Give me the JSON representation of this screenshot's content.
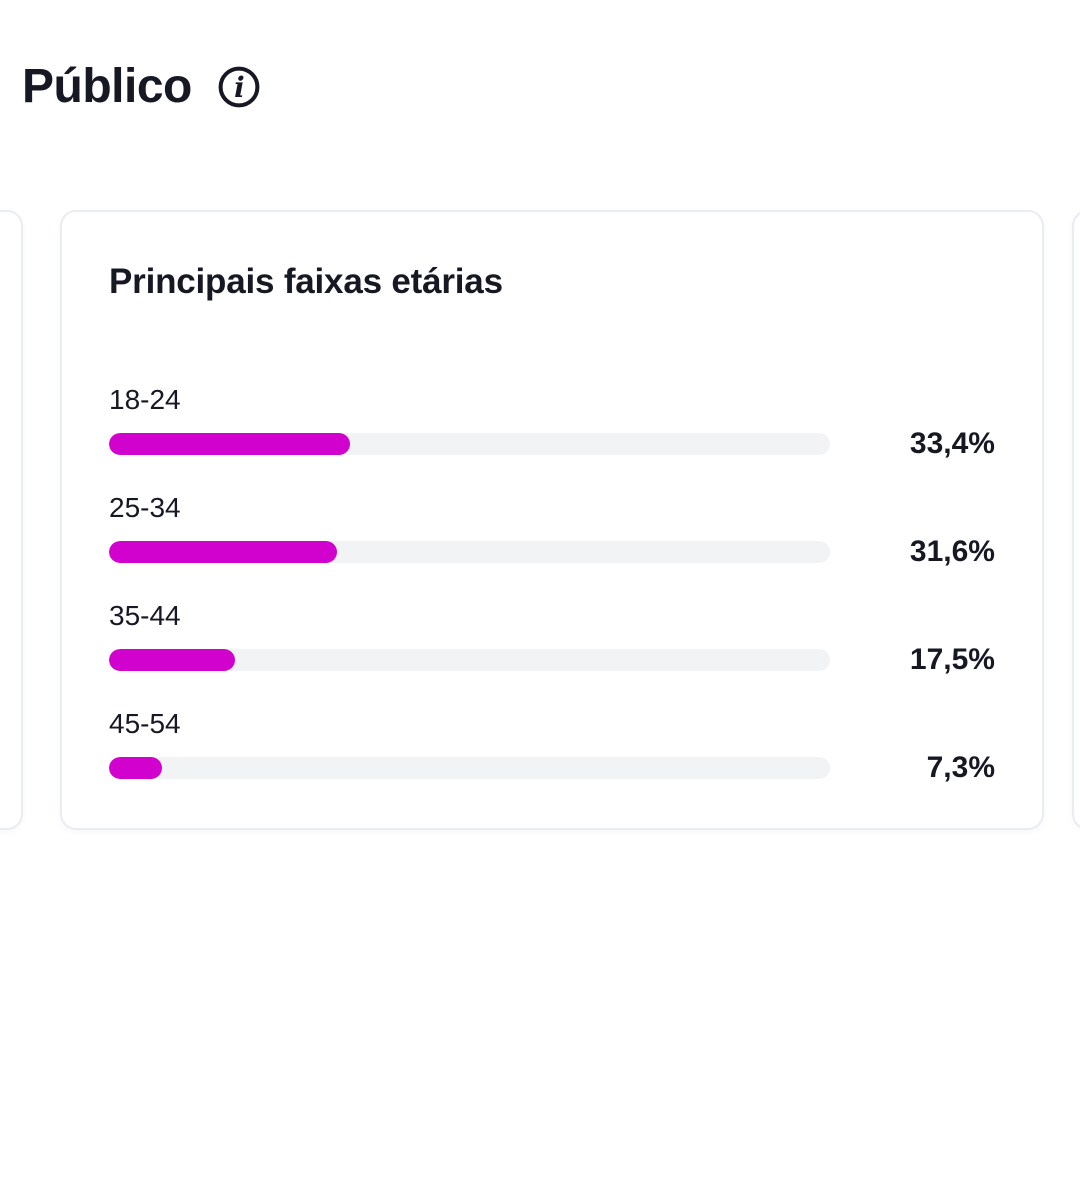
{
  "page": {
    "title": "Público"
  },
  "icons": {
    "info": "info-icon"
  },
  "card": {
    "title": "Principais faixas etárias"
  },
  "chart_data": {
    "type": "bar",
    "orientation": "horizontal",
    "title": "Principais faixas etárias",
    "categories": [
      "18-24",
      "25-34",
      "35-44",
      "45-54"
    ],
    "values": [
      33.4,
      31.6,
      17.5,
      7.3
    ],
    "value_labels": [
      "33,4%",
      "31,6%",
      "17,5%",
      "7,3%"
    ],
    "xlim": [
      0,
      100
    ],
    "grid": false,
    "bar_color": "#d102cd",
    "track_color": "#f2f3f5"
  },
  "colors": {
    "text": "#161823",
    "accent": "#d102cd",
    "track": "#f2f3f5",
    "card_border": "#e9ecf1",
    "background": "#ffffff"
  }
}
